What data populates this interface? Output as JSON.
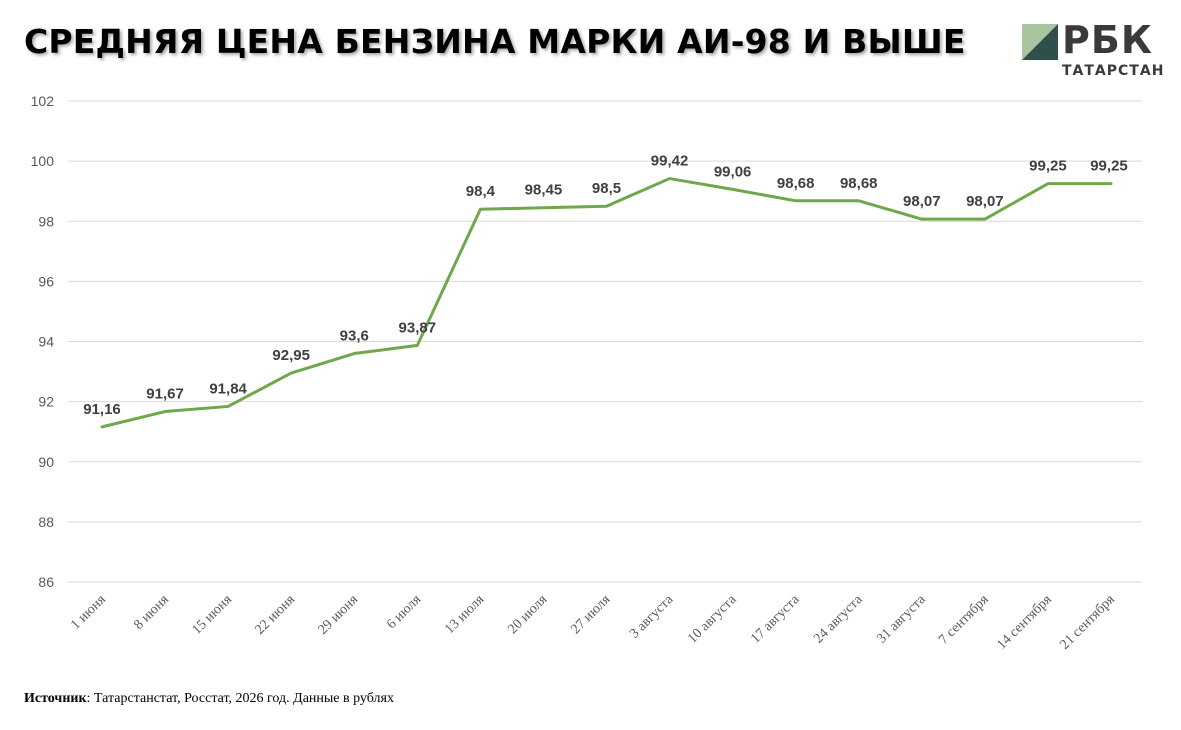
{
  "title": "СРЕДНЯЯ ЦЕНА БЕНЗИНА МАРКИ АИ-98 И ВЫШЕ",
  "logo": {
    "name": "РБК",
    "region": "ТАТАРСТАН",
    "icon": "rbc-logo-icon"
  },
  "footer": {
    "source_label": "Источник",
    "source_text": ": Татарстанстат, Росстат, 2026 год. Данные в рублях"
  },
  "colors": {
    "line": "#70a74a",
    "grid": "#d9d9d9",
    "axis_text": "#595959",
    "label_text": "#404040",
    "logo_dark": "#3a3a3a",
    "logo_green": "#a8c5a0"
  },
  "chart_data": {
    "type": "line",
    "title": "СРЕДНЯЯ ЦЕНА БЕНЗИНА МАРКИ АИ-98 И ВЫШЕ",
    "xlabel": "",
    "ylabel": "",
    "categories": [
      "1 июня",
      "8 июня",
      "15 июня",
      "22 июня",
      "29 июня",
      "6 июля",
      "13 июля",
      "20 июля",
      "27 июля",
      "3 августа",
      "10 августа",
      "17 августа",
      "24 августа",
      "31 августа",
      "7 сентября",
      "14 сентября",
      "21 сентября"
    ],
    "series": [
      {
        "values": [
          91.16,
          91.67,
          91.84,
          92.95,
          93.6,
          93.87,
          98.4,
          98.45,
          98.5,
          99.42,
          99.06,
          98.68,
          98.68,
          98.07,
          98.07,
          99.25,
          99.25
        ],
        "labels": [
          "91,16",
          "91,67",
          "91,84",
          "92,95",
          "93,6",
          "93,87",
          "98,4",
          "98,45",
          "98,5",
          "99,42",
          "99,06",
          "98,68",
          "98,68",
          "98,07",
          "98,07",
          "99,25",
          "99,25"
        ]
      }
    ],
    "ylim": [
      86,
      102
    ],
    "yticks": [
      86,
      88,
      90,
      92,
      94,
      96,
      98,
      100,
      102
    ],
    "grid": true,
    "legend": "none"
  }
}
